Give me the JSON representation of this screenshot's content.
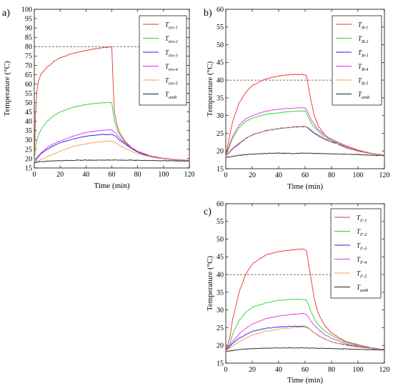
{
  "chart_data": [
    {
      "panel": "a)",
      "type": "line",
      "xlabel": "Time (min)",
      "ylabel": "Temperature (°C)",
      "xlim": [
        0,
        120
      ],
      "ylim": [
        15,
        100
      ],
      "xticks": [
        0,
        20,
        40,
        60,
        80,
        100,
        120
      ],
      "yticks": [
        15,
        20,
        25,
        30,
        35,
        40,
        45,
        50,
        55,
        60,
        65,
        70,
        75,
        80,
        85,
        90,
        95,
        100
      ],
      "reference_line": {
        "y": 80,
        "style": "dashed"
      },
      "legend_position": "top-right",
      "grid": false,
      "series": [
        {
          "name": "T",
          "subscript": "tro-1",
          "color": "#e8312f",
          "x": [
            0,
            1,
            2,
            3,
            5,
            8,
            10,
            15,
            20,
            30,
            40,
            50,
            59,
            60,
            61,
            62,
            64,
            66,
            70,
            75,
            80,
            90,
            100,
            110,
            120
          ],
          "y": [
            18,
            45,
            56,
            61,
            65,
            67.5,
            69,
            72,
            74,
            76.5,
            78,
            79.2,
            79.8,
            79.8,
            60,
            45,
            38,
            34,
            29.5,
            26,
            23.5,
            21,
            20,
            19.3,
            19
          ]
        },
        {
          "name": "T",
          "subscript": "tro-2",
          "color": "#2bd42b",
          "x": [
            0,
            1,
            2,
            4,
            6,
            10,
            15,
            20,
            30,
            40,
            50,
            59,
            60,
            62,
            65,
            70,
            75,
            80,
            90,
            100,
            110,
            120
          ],
          "y": [
            18,
            26,
            30,
            34,
            36.5,
            40,
            43,
            45,
            47.5,
            49,
            49.8,
            50,
            50,
            40,
            34,
            29,
            25.5,
            23.5,
            21,
            20,
            19.3,
            19
          ]
        },
        {
          "name": "T",
          "subscript": "tro-3",
          "color": "#2222e0",
          "x": [
            0,
            2,
            5,
            10,
            15,
            20,
            30,
            40,
            50,
            59,
            60,
            63,
            66,
            70,
            75,
            80,
            90,
            100,
            110,
            120
          ],
          "y": [
            18,
            20,
            22.5,
            25,
            27,
            28.5,
            30.5,
            32,
            32.8,
            33,
            33,
            32,
            30,
            28,
            25.5,
            23.5,
            21,
            20,
            19.3,
            19
          ]
        },
        {
          "name": "T",
          "subscript": "tro-4",
          "color": "#e033e0",
          "x": [
            0,
            2,
            5,
            10,
            15,
            20,
            30,
            40,
            50,
            59,
            60,
            63,
            66,
            70,
            75,
            80,
            90,
            100,
            110,
            120
          ],
          "y": [
            18,
            20.5,
            23,
            26,
            28,
            29.5,
            32,
            34,
            35,
            35.5,
            35.5,
            33.5,
            31,
            28.5,
            26,
            24,
            21.5,
            20.2,
            19.5,
            19
          ]
        },
        {
          "name": "T",
          "subscript": "tro-5",
          "color": "#f0a050",
          "x": [
            0,
            5,
            10,
            20,
            30,
            40,
            50,
            59,
            60,
            63,
            66,
            70,
            75,
            80,
            90,
            100,
            110,
            120
          ],
          "y": [
            18,
            19.5,
            21,
            24,
            26.5,
            28,
            29,
            29.5,
            29.5,
            28.5,
            27,
            25.5,
            24,
            22.5,
            21,
            20,
            19.3,
            19
          ]
        },
        {
          "name": "T",
          "subscript": "amb",
          "color": "#222222",
          "x": [
            0,
            10,
            20,
            30,
            40,
            50,
            60,
            70,
            80,
            90,
            100,
            110,
            120
          ],
          "y": [
            18,
            18.6,
            18.9,
            19.1,
            19.2,
            19.2,
            19.3,
            19.2,
            19.1,
            19,
            18.9,
            18.8,
            18.7
          ]
        }
      ]
    },
    {
      "panel": "b)",
      "type": "line",
      "xlabel": "Time (min)",
      "ylabel": "Temperature (°C)",
      "xlim": [
        0,
        120
      ],
      "ylim": [
        15,
        60
      ],
      "xticks": [
        0,
        20,
        40,
        60,
        80,
        100,
        120
      ],
      "yticks": [
        15,
        20,
        25,
        30,
        35,
        40,
        45,
        50,
        55,
        60
      ],
      "reference_line": {
        "y": 40,
        "style": "dashed"
      },
      "legend_position": "top-right",
      "grid": false,
      "series": [
        {
          "name": "T",
          "subscript": "B-1",
          "color": "#e8312f",
          "x": [
            0,
            2,
            5,
            10,
            15,
            20,
            30,
            40,
            50,
            58,
            61,
            64,
            67,
            70,
            75,
            80,
            90,
            100,
            110,
            120
          ],
          "y": [
            18.5,
            22.5,
            28,
            33.5,
            36.5,
            38.5,
            40.3,
            41.2,
            41.6,
            41.6,
            41.3,
            35,
            30,
            27,
            24.5,
            23,
            21,
            20,
            19.2,
            18.8
          ]
        },
        {
          "name": "T",
          "subscript": "B-2",
          "color": "#2bd42b",
          "x": [
            0,
            2,
            5,
            10,
            15,
            20,
            30,
            40,
            50,
            60,
            62,
            65,
            70,
            75,
            80,
            90,
            100,
            110,
            120
          ],
          "y": [
            18.5,
            20.5,
            23.5,
            26.5,
            28.3,
            29.3,
            30.3,
            30.8,
            31.2,
            31.3,
            30,
            27.5,
            25.5,
            24,
            23,
            21.5,
            20.3,
            19.3,
            18.8
          ]
        },
        {
          "name": "T",
          "subscript": "B-3",
          "color": "#2222e0",
          "x": [
            0,
            5,
            10,
            15,
            20,
            30,
            40,
            50,
            60,
            62,
            65,
            70,
            75,
            80,
            90,
            100,
            110,
            120
          ],
          "y": [
            18.5,
            20.5,
            22,
            23.5,
            24.5,
            25.7,
            26.3,
            26.7,
            26.9,
            26.5,
            25.5,
            24.3,
            23.3,
            22.5,
            21.3,
            20.2,
            19.3,
            18.8
          ]
        },
        {
          "name": "T",
          "subscript": "B-4",
          "color": "#e033e0",
          "x": [
            0,
            2,
            5,
            10,
            15,
            20,
            30,
            40,
            50,
            60,
            62,
            65,
            70,
            75,
            80,
            90,
            100,
            110,
            120
          ],
          "y": [
            18.5,
            21,
            24,
            27.3,
            29,
            30,
            31.2,
            31.8,
            32.1,
            32.2,
            31,
            28.5,
            26,
            24.5,
            23.3,
            21.6,
            20.3,
            19.3,
            18.8
          ]
        },
        {
          "name": "T",
          "subscript": "B-5",
          "color": "#f0a050",
          "x": [
            0,
            5,
            10,
            15,
            20,
            30,
            40,
            50,
            60,
            62,
            65,
            70,
            75,
            80,
            90,
            100,
            110,
            120
          ],
          "y": [
            18.5,
            20.7,
            22.3,
            23.6,
            24.6,
            25.8,
            26.4,
            26.8,
            27,
            26.7,
            25.8,
            24.6,
            23.5,
            22.6,
            21.4,
            20.3,
            19.3,
            18.8
          ]
        },
        {
          "name": "T",
          "subscript": "amb",
          "color": "#222222",
          "x": [
            0,
            10,
            20,
            30,
            40,
            50,
            60,
            70,
            80,
            90,
            100,
            110,
            120
          ],
          "y": [
            18.2,
            18.8,
            19.1,
            19.3,
            19.4,
            19.3,
            19.4,
            19.3,
            19.2,
            19.1,
            19,
            18.8,
            18.7
          ]
        }
      ]
    },
    {
      "panel": "c)",
      "type": "line",
      "xlabel": "Time (min)",
      "ylabel": "Temperature (°C)",
      "xlim": [
        0,
        120
      ],
      "ylim": [
        15,
        60
      ],
      "xticks": [
        0,
        20,
        40,
        60,
        80,
        100,
        120
      ],
      "yticks": [
        15,
        20,
        25,
        30,
        35,
        40,
        45,
        50,
        55,
        60
      ],
      "reference_line": {
        "y": 40,
        "style": "dashed"
      },
      "legend_position": "top-right",
      "grid": false,
      "series": [
        {
          "name": "T",
          "subscript": "F-1",
          "color": "#e8312f",
          "x": [
            0,
            3,
            5,
            10,
            15,
            20,
            30,
            40,
            50,
            58,
            61,
            64,
            67,
            70,
            75,
            80,
            90,
            100,
            110,
            120
          ],
          "y": [
            18.5,
            22,
            27,
            35,
            40,
            43,
            45.5,
            46.5,
            47,
            47.2,
            46.8,
            40,
            33,
            29,
            25.5,
            23.5,
            21.2,
            20.2,
            19.3,
            18.8
          ]
        },
        {
          "name": "T",
          "subscript": "F-2",
          "color": "#2bd42b",
          "x": [
            0,
            3,
            5,
            10,
            15,
            20,
            30,
            40,
            50,
            58,
            61,
            64,
            67,
            70,
            75,
            80,
            90,
            100,
            110,
            120
          ],
          "y": [
            18.5,
            20.5,
            23,
            27,
            29.3,
            30.8,
            32,
            32.7,
            33,
            33,
            32.8,
            30,
            27.5,
            25.8,
            24,
            22.8,
            21,
            20,
            19.3,
            18.8
          ]
        },
        {
          "name": "T",
          "subscript": "F-3",
          "color": "#2222e0",
          "x": [
            0,
            5,
            10,
            15,
            20,
            30,
            40,
            50,
            60,
            63,
            66,
            70,
            75,
            80,
            90,
            100,
            110,
            120
          ],
          "y": [
            18.5,
            20.5,
            22,
            23,
            24,
            24.8,
            25.2,
            25.4,
            25.4,
            24.7,
            23.8,
            22.8,
            21.8,
            21,
            20.2,
            19.6,
            19.1,
            18.8
          ]
        },
        {
          "name": "T",
          "subscript": "F-4",
          "color": "#e033e0",
          "x": [
            0,
            5,
            10,
            15,
            20,
            30,
            40,
            50,
            60,
            62,
            65,
            70,
            75,
            80,
            90,
            100,
            110,
            120
          ],
          "y": [
            18.5,
            21,
            23.2,
            24.8,
            26,
            27.5,
            28.3,
            28.8,
            29,
            28.2,
            26.5,
            24.5,
            23,
            22,
            20.6,
            19.8,
            19.2,
            18.8
          ]
        },
        {
          "name": "T",
          "subscript": "F-5",
          "color": "#f0a050",
          "x": [
            0,
            5,
            10,
            15,
            20,
            30,
            40,
            50,
            60,
            63,
            66,
            70,
            75,
            80,
            90,
            100,
            110,
            120
          ],
          "y": [
            18.5,
            19.8,
            21,
            22,
            22.9,
            24,
            24.6,
            25,
            25.2,
            24.7,
            23.8,
            22.8,
            21.8,
            21,
            20.1,
            19.5,
            19.1,
            18.8
          ]
        },
        {
          "name": "T",
          "subscript": "amb",
          "color": "#222222",
          "x": [
            0,
            10,
            20,
            30,
            40,
            50,
            60,
            70,
            80,
            90,
            100,
            110,
            120
          ],
          "y": [
            18.3,
            18.8,
            19.1,
            19.2,
            19.3,
            19.3,
            19.3,
            19.2,
            19.1,
            19,
            18.9,
            18.8,
            18.7
          ]
        }
      ]
    }
  ]
}
